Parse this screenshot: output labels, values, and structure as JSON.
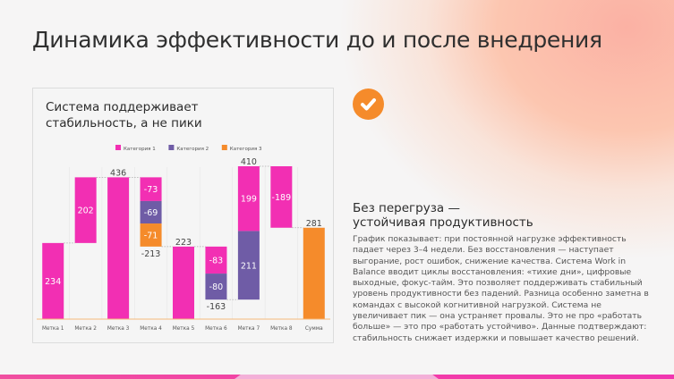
{
  "title": "Динамика эффективности до и после внедрения",
  "card": {
    "title": "Система поддерживает стабильность, а не пики"
  },
  "side": {
    "heading_line1": "Без перегруза —",
    "heading_line2": "устойчивая продуктивность",
    "body": "График показывает: при постоянной нагрузке эффективность падает через 3–4 недели. Без восстановления — наступает выгорание, рост ошибок, снижение качества. Система Work in Balance вводит циклы восстановления: «тихие дни», цифровые выходные, фокус-тайм. Это позволяет поддерживать стабильный уровень продуктивности без падений. Разница особенно заметна в командах с высокой когнитивной нагрузкой. Система не увеличивает пик — она устраняет провалы. Это не про «работать больше» — это про «работать устойчиво». Данные подтверждают: стабильность снижает издержки и повышает качество решений."
  },
  "icons": {
    "check": "check-circle-icon"
  },
  "colors": {
    "cat1": "#f22fb3",
    "cat2": "#6f5ca6",
    "cat3": "#f58b2b"
  },
  "chart_data": {
    "type": "waterfall",
    "legend": [
      "Категория 1",
      "Категория 2",
      "Категория 3"
    ],
    "legend_position": "top",
    "categories": [
      "Метка 1",
      "Метка 2",
      "Метка 3",
      "Метка 4",
      "Метка 5",
      "Метка 6",
      "Метка 7",
      "Метка 8",
      "Сумма"
    ],
    "ylim": [
      0,
      480
    ],
    "bars": [
      {
        "segments": [
          {
            "cat": 0,
            "from": 0,
            "to": 234,
            "label": "234"
          }
        ]
      },
      {
        "segments": [
          {
            "cat": 0,
            "from": 234,
            "to": 436,
            "label": "202"
          }
        ]
      },
      {
        "total_label": "436",
        "segments": [
          {
            "cat": 0,
            "from": 0,
            "to": 436,
            "label": ""
          }
        ]
      },
      {
        "bottom_label": "-213",
        "segments": [
          {
            "cat": 0,
            "from": 436,
            "to": 363,
            "label": "-73"
          },
          {
            "cat": 1,
            "from": 363,
            "to": 294,
            "label": "-69"
          },
          {
            "cat": 2,
            "from": 294,
            "to": 223,
            "label": "-71"
          }
        ]
      },
      {
        "total_label": "223",
        "segments": [
          {
            "cat": 0,
            "from": 0,
            "to": 223,
            "label": ""
          }
        ]
      },
      {
        "bottom_label": "-163",
        "segments": [
          {
            "cat": 0,
            "from": 223,
            "to": 140,
            "label": "-83"
          },
          {
            "cat": 1,
            "from": 140,
            "to": 60,
            "label": "-80"
          }
        ]
      },
      {
        "total_label": "410",
        "segments": [
          {
            "cat": 1,
            "from": 60,
            "to": 271,
            "label": "211"
          },
          {
            "cat": 0,
            "from": 271,
            "to": 470,
            "label": "199"
          }
        ]
      },
      {
        "segments": [
          {
            "cat": 0,
            "from": 470,
            "to": 281,
            "label": "-189"
          }
        ]
      },
      {
        "total_label": "281",
        "segments": [
          {
            "cat": 2,
            "from": 0,
            "to": 281,
            "label": ""
          }
        ]
      }
    ]
  }
}
